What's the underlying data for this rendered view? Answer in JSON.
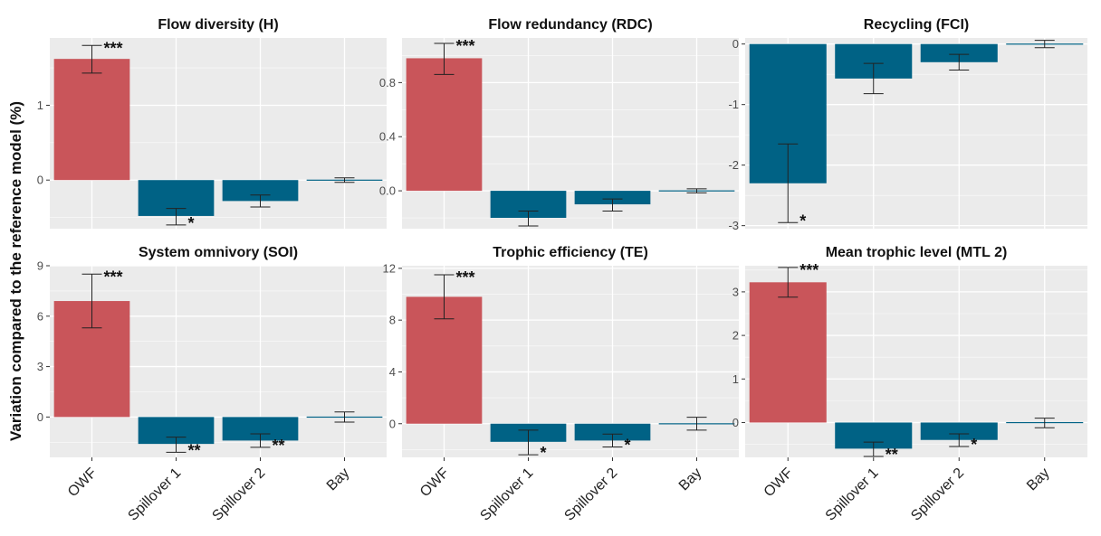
{
  "figure": {
    "ylabel": "Variation compared to the reference model (%)",
    "colors": {
      "positive": "#c9555a",
      "negative": "#006285",
      "panel_bg": "#ebebeb",
      "grid": "#ffffff"
    }
  },
  "chart_data": [
    {
      "type": "bar",
      "title": "Flow diversity (H)",
      "categories": [
        "OWF",
        "Spillover 1",
        "Spillover 2",
        "Bay"
      ],
      "values": [
        1.62,
        -0.48,
        -0.28,
        0.0
      ],
      "error_low": [
        1.43,
        -0.6,
        -0.36,
        -0.03
      ],
      "error_high": [
        1.8,
        -0.38,
        -0.2,
        0.03
      ],
      "significance": [
        "***",
        "*",
        "",
        ""
      ],
      "ylim": [
        -0.65,
        1.9
      ],
      "yticks": [
        0,
        1
      ],
      "xticklabels_shown": false
    },
    {
      "type": "bar",
      "title": "Flow redundancy (RDC)",
      "categories": [
        "OWF",
        "Spillover 1",
        "Spillover 2",
        "Bay"
      ],
      "values": [
        0.98,
        -0.2,
        -0.1,
        0.0
      ],
      "error_low": [
        0.86,
        -0.26,
        -0.15,
        -0.015
      ],
      "error_high": [
        1.09,
        -0.15,
        -0.06,
        0.015
      ],
      "significance": [
        "***",
        "",
        "",
        ""
      ],
      "ylim": [
        -0.28,
        1.13
      ],
      "yticks": [
        0.0,
        0.4,
        0.8
      ],
      "xticklabels_shown": false
    },
    {
      "type": "bar",
      "title": "Recycling (FCI)",
      "categories": [
        "OWF",
        "Spillover 1",
        "Spillover 2",
        "Bay"
      ],
      "values": [
        -2.3,
        -0.57,
        -0.3,
        0.0
      ],
      "error_low": [
        -2.95,
        -0.82,
        -0.43,
        -0.06
      ],
      "error_high": [
        -1.65,
        -0.32,
        -0.17,
        0.06
      ],
      "significance": [
        "*",
        "",
        "",
        ""
      ],
      "ylim": [
        -3.05,
        0.1
      ],
      "yticks": [
        -3,
        -2,
        -1,
        0
      ],
      "xticklabels_shown": false
    },
    {
      "type": "bar",
      "title": "System omnivory (SOI)",
      "categories": [
        "OWF",
        "Spillover 1",
        "Spillover 2",
        "Bay"
      ],
      "values": [
        6.9,
        -1.6,
        -1.4,
        0.0
      ],
      "error_low": [
        5.3,
        -2.1,
        -1.8,
        -0.3
      ],
      "error_high": [
        8.5,
        -1.2,
        -1.0,
        0.3
      ],
      "significance": [
        "***",
        "**",
        "**",
        ""
      ],
      "ylim": [
        -2.4,
        9.0
      ],
      "yticks": [
        0,
        3,
        6,
        9
      ],
      "xticklabels_shown": true
    },
    {
      "type": "bar",
      "title": "Trophic efficiency (TE)",
      "categories": [
        "OWF",
        "Spillover 1",
        "Spillover 2",
        "Bay"
      ],
      "values": [
        9.8,
        -1.4,
        -1.3,
        0.0
      ],
      "error_low": [
        8.1,
        -2.4,
        -1.8,
        -0.5
      ],
      "error_high": [
        11.5,
        -0.5,
        -0.8,
        0.5
      ],
      "significance": [
        "***",
        "*",
        "*",
        ""
      ],
      "ylim": [
        -2.6,
        12.2
      ],
      "yticks": [
        0,
        4,
        8,
        12
      ],
      "xticklabels_shown": true
    },
    {
      "type": "bar",
      "title": "Mean trophic level (MTL 2)",
      "categories": [
        "OWF",
        "Spillover 1",
        "Spillover 2",
        "Bay"
      ],
      "values": [
        3.22,
        -0.6,
        -0.4,
        0.0
      ],
      "error_low": [
        2.88,
        -0.78,
        -0.55,
        -0.12
      ],
      "error_high": [
        3.56,
        -0.45,
        -0.26,
        0.1
      ],
      "significance": [
        "***",
        "**",
        "*",
        ""
      ],
      "ylim": [
        -0.8,
        3.6
      ],
      "yticks": [
        0,
        1,
        2,
        3
      ],
      "xticklabels_shown": true
    }
  ]
}
